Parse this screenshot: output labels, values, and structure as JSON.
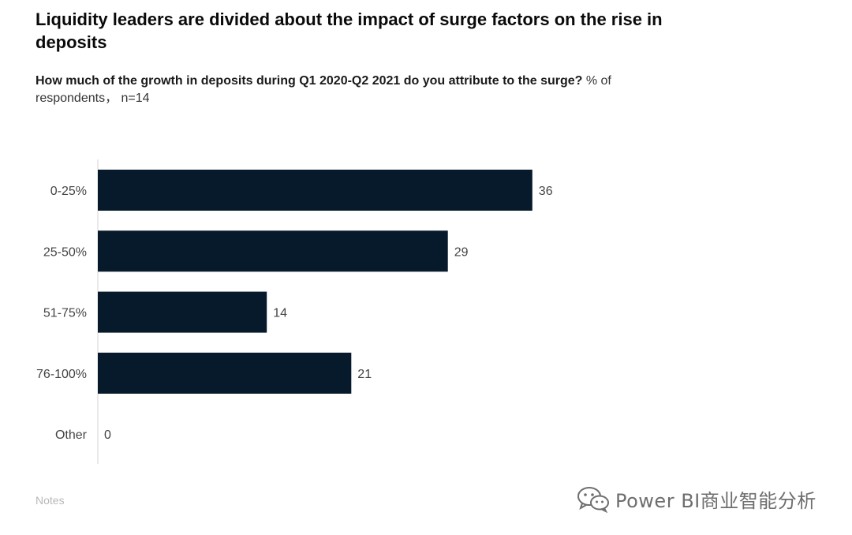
{
  "title": "Liquidity leaders are divided about the impact of surge factors on the rise in deposits",
  "subtitle_question": "How much of the growth in deposits during Q1 2020-Q2 2021 do you attribute to the surge?",
  "subtitle_unit": " % of respondents， n=14",
  "notes_label": "Notes",
  "watermark": {
    "text": "Power BI商业智能分析",
    "icon": "wechat-icon"
  },
  "colors": {
    "bar": "#071a2b",
    "axis": "#d6d6d6",
    "text": "#444444"
  },
  "chart_data": {
    "type": "bar",
    "orientation": "horizontal",
    "categories": [
      "0-25%",
      "25-50%",
      "51-75%",
      "76-100%",
      "Other"
    ],
    "values": [
      36,
      29,
      14,
      21,
      0
    ],
    "xlim": [
      0,
      45
    ],
    "title": "",
    "xlabel": "",
    "ylabel": "",
    "grid": false,
    "legend": false
  }
}
